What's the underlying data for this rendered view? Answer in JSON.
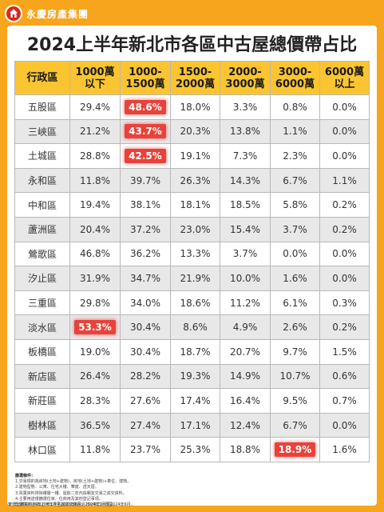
{
  "brand": {
    "name": "永慶房產集團",
    "logo_icon": "yongqing-logo-icon"
  },
  "title": "2024上半年新北市各區中古屋總價帶占比",
  "table": {
    "headers": [
      [
        "行政區"
      ],
      [
        "1000萬",
        "以下"
      ],
      [
        "1000-",
        "1500萬"
      ],
      [
        "1500-",
        "2000萬"
      ],
      [
        "2000-",
        "3000萬"
      ],
      [
        "3000-",
        "6000萬"
      ],
      [
        "6000萬",
        "以上"
      ]
    ],
    "rows": [
      {
        "district": "五股區",
        "values": [
          "29.4%",
          "48.6%",
          "18.0%",
          "3.3%",
          "0.8%",
          "0.0%"
        ],
        "highlight": 1
      },
      {
        "district": "三峽區",
        "values": [
          "21.2%",
          "43.7%",
          "20.3%",
          "13.8%",
          "1.1%",
          "0.0%"
        ],
        "highlight": 1
      },
      {
        "district": "土城區",
        "values": [
          "28.8%",
          "42.5%",
          "19.1%",
          "7.3%",
          "2.3%",
          "0.0%"
        ],
        "highlight": 1
      },
      {
        "district": "永和區",
        "values": [
          "11.8%",
          "39.7%",
          "26.3%",
          "14.3%",
          "6.7%",
          "1.1%"
        ],
        "highlight": -1
      },
      {
        "district": "中和區",
        "values": [
          "19.4%",
          "38.1%",
          "18.1%",
          "18.5%",
          "5.8%",
          "0.2%"
        ],
        "highlight": -1
      },
      {
        "district": "蘆洲區",
        "values": [
          "20.4%",
          "37.2%",
          "23.0%",
          "15.4%",
          "3.7%",
          "0.2%"
        ],
        "highlight": -1
      },
      {
        "district": "鶯歌區",
        "values": [
          "46.8%",
          "36.2%",
          "13.3%",
          "3.7%",
          "0.0%",
          "0.0%"
        ],
        "highlight": -1
      },
      {
        "district": "汐止區",
        "values": [
          "31.9%",
          "34.7%",
          "21.9%",
          "10.0%",
          "1.6%",
          "0.0%"
        ],
        "highlight": -1
      },
      {
        "district": "三重區",
        "values": [
          "29.8%",
          "34.0%",
          "18.6%",
          "11.2%",
          "6.1%",
          "0.3%"
        ],
        "highlight": -1
      },
      {
        "district": "淡水區",
        "values": [
          "53.3%",
          "30.4%",
          "8.6%",
          "4.9%",
          "2.6%",
          "0.2%"
        ],
        "highlight": 0
      },
      {
        "district": "板橋區",
        "values": [
          "19.0%",
          "30.4%",
          "18.7%",
          "20.7%",
          "9.7%",
          "1.5%"
        ],
        "highlight": -1
      },
      {
        "district": "新店區",
        "values": [
          "26.4%",
          "28.2%",
          "19.3%",
          "14.9%",
          "10.7%",
          "0.6%"
        ],
        "highlight": -1
      },
      {
        "district": "新莊區",
        "values": [
          "28.3%",
          "27.6%",
          "17.4%",
          "16.4%",
          "9.5%",
          "0.7%"
        ],
        "highlight": -1
      },
      {
        "district": "樹林區",
        "values": [
          "36.5%",
          "27.4%",
          "17.1%",
          "12.4%",
          "6.7%",
          "0.0%"
        ],
        "highlight": -1
      },
      {
        "district": "林口區",
        "values": [
          "11.8%",
          "23.7%",
          "25.3%",
          "18.8%",
          "18.9%",
          "1.6%"
        ],
        "highlight": 4
      }
    ]
  },
  "notes": {
    "heading": "篩選條件：",
    "items": [
      "1.交易標的為房地(土地+建物)、房地(土地+建物)+車位、建物。",
      "2.建物型態：公寓、住宅大樓、華廈、透天厝。",
      "3.買賣資料排除樓層一樓、屋齡二年內與親友交易之成交資料。",
      "4.主要用途僅篩選住家、住商用及其他登記事項。",
      "5.選擇2024年上半年中古屋成交量超過250件之行政區。"
    ],
    "source": "實價登錄資料自2020年1月至2020年6月、2024年1月至2024年6月。"
  }
}
